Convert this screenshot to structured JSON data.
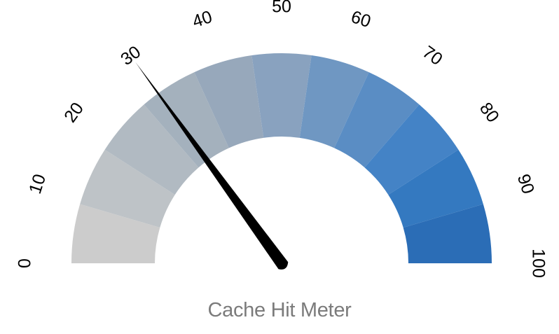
{
  "title": "Cache Hit Meter",
  "chart_data": {
    "type": "gauge",
    "title": "Cache Hit Meter",
    "min": 0,
    "max": 100,
    "value": 30,
    "tick_labels": [
      "0",
      "10",
      "20",
      "30",
      "40",
      "50",
      "60",
      "70",
      "80",
      "90",
      "100"
    ],
    "band_colors": [
      "#cccccc",
      "#bec3c7",
      "#b1bac2",
      "#a4b1bd",
      "#97a8bb",
      "#89a2bf",
      "#6f97c2",
      "#5a8dc4",
      "#4483c6",
      "#3479c0",
      "#2b6db6"
    ],
    "needle_color": "#000000",
    "title_color": "#7b7b7b"
  }
}
